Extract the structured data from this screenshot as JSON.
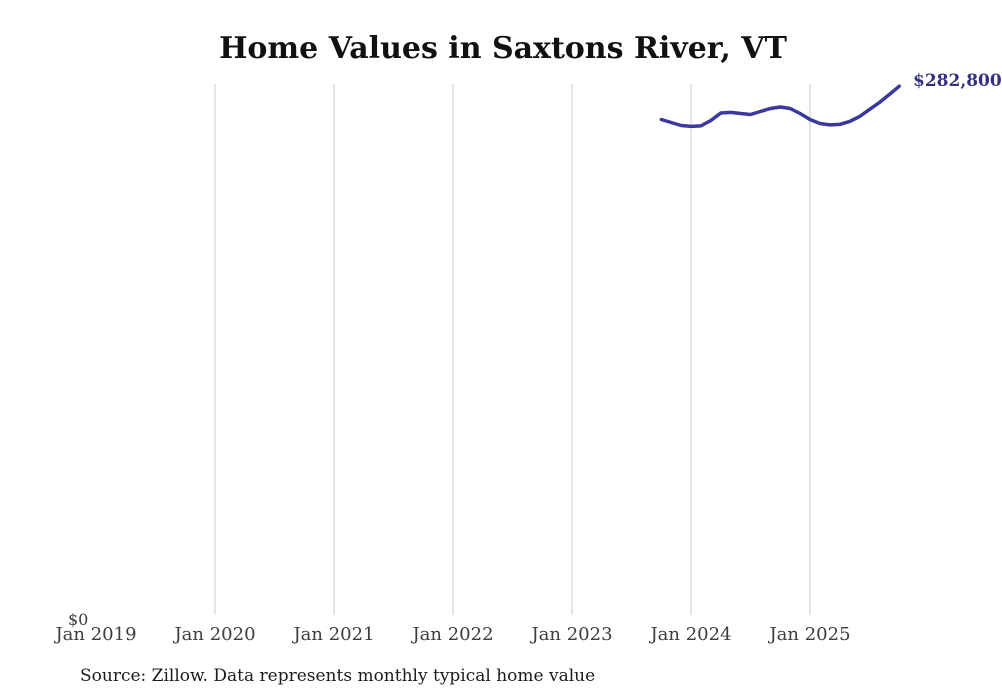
{
  "title": "Home Values in Saxtons River, VT",
  "source_note": "Source: Zillow. Data represents monthly typical home value",
  "zero_label": "$0",
  "end_label": "$282,800",
  "colors": {
    "line": "#39399e",
    "end_label": "#32327d",
    "gridline": "#cccccc",
    "tick_text": "#3d3d3d",
    "title_text": "#111111",
    "source_text": "#1c1c1c",
    "background": "#ffffff"
  },
  "chart_data": {
    "type": "line",
    "title": "Home Values in Saxtons River, VT",
    "xlabel": "",
    "ylabel": "",
    "ylim": [
      0,
      284000
    ],
    "grid": "vertical-only",
    "legend": "none",
    "y_tick_labels": [
      "$0"
    ],
    "x_ticks": [
      {
        "label": "Jan 2019",
        "month_index": 0,
        "gridline": false
      },
      {
        "label": "Jan 2020",
        "month_index": 12,
        "gridline": true
      },
      {
        "label": "Jan 2021",
        "month_index": 24,
        "gridline": true
      },
      {
        "label": "Jan 2022",
        "month_index": 36,
        "gridline": true
      },
      {
        "label": "Jan 2023",
        "month_index": 48,
        "gridline": true
      },
      {
        "label": "Jan 2024",
        "month_index": 60,
        "gridline": true
      },
      {
        "label": "Jan 2025",
        "month_index": 72,
        "gridline": true
      }
    ],
    "series": [
      {
        "name": "Monthly typical home value",
        "points": [
          {
            "month": "Oct 2023",
            "month_index": 57,
            "value": 265000
          },
          {
            "month": "Nov 2023",
            "month_index": 58,
            "value": 263400
          },
          {
            "month": "Dec 2023",
            "month_index": 59,
            "value": 261800
          },
          {
            "month": "Jan 2024",
            "month_index": 60,
            "value": 261300
          },
          {
            "month": "Feb 2024",
            "month_index": 61,
            "value": 261600
          },
          {
            "month": "Mar 2024",
            "month_index": 62,
            "value": 264500
          },
          {
            "month": "Apr 2024",
            "month_index": 63,
            "value": 268500
          },
          {
            "month": "May 2024",
            "month_index": 64,
            "value": 268800
          },
          {
            "month": "Jun 2024",
            "month_index": 65,
            "value": 268200
          },
          {
            "month": "Jul 2024",
            "month_index": 66,
            "value": 267700
          },
          {
            "month": "Aug 2024",
            "month_index": 67,
            "value": 269300
          },
          {
            "month": "Sep 2024",
            "month_index": 68,
            "value": 270900
          },
          {
            "month": "Oct 2024",
            "month_index": 69,
            "value": 271700
          },
          {
            "month": "Nov 2024",
            "month_index": 70,
            "value": 270900
          },
          {
            "month": "Dec 2024",
            "month_index": 71,
            "value": 268200
          },
          {
            "month": "Jan 2025",
            "month_index": 72,
            "value": 265000
          },
          {
            "month": "Feb 2025",
            "month_index": 73,
            "value": 262900
          },
          {
            "month": "Mar 2025",
            "month_index": 74,
            "value": 262100
          },
          {
            "month": "Apr 2025",
            "month_index": 75,
            "value": 262400
          },
          {
            "month": "May 2025",
            "month_index": 76,
            "value": 264000
          },
          {
            "month": "Jun 2025",
            "month_index": 77,
            "value": 266600
          },
          {
            "month": "Jul 2025",
            "month_index": 78,
            "value": 270400
          },
          {
            "month": "Aug 2025",
            "month_index": 79,
            "value": 274100
          },
          {
            "month": "Sep 2025",
            "month_index": 80,
            "value": 278400
          },
          {
            "month": "Oct 2025",
            "month_index": 81,
            "value": 282800
          }
        ],
        "latest_value_label": "$282,800"
      }
    ]
  }
}
